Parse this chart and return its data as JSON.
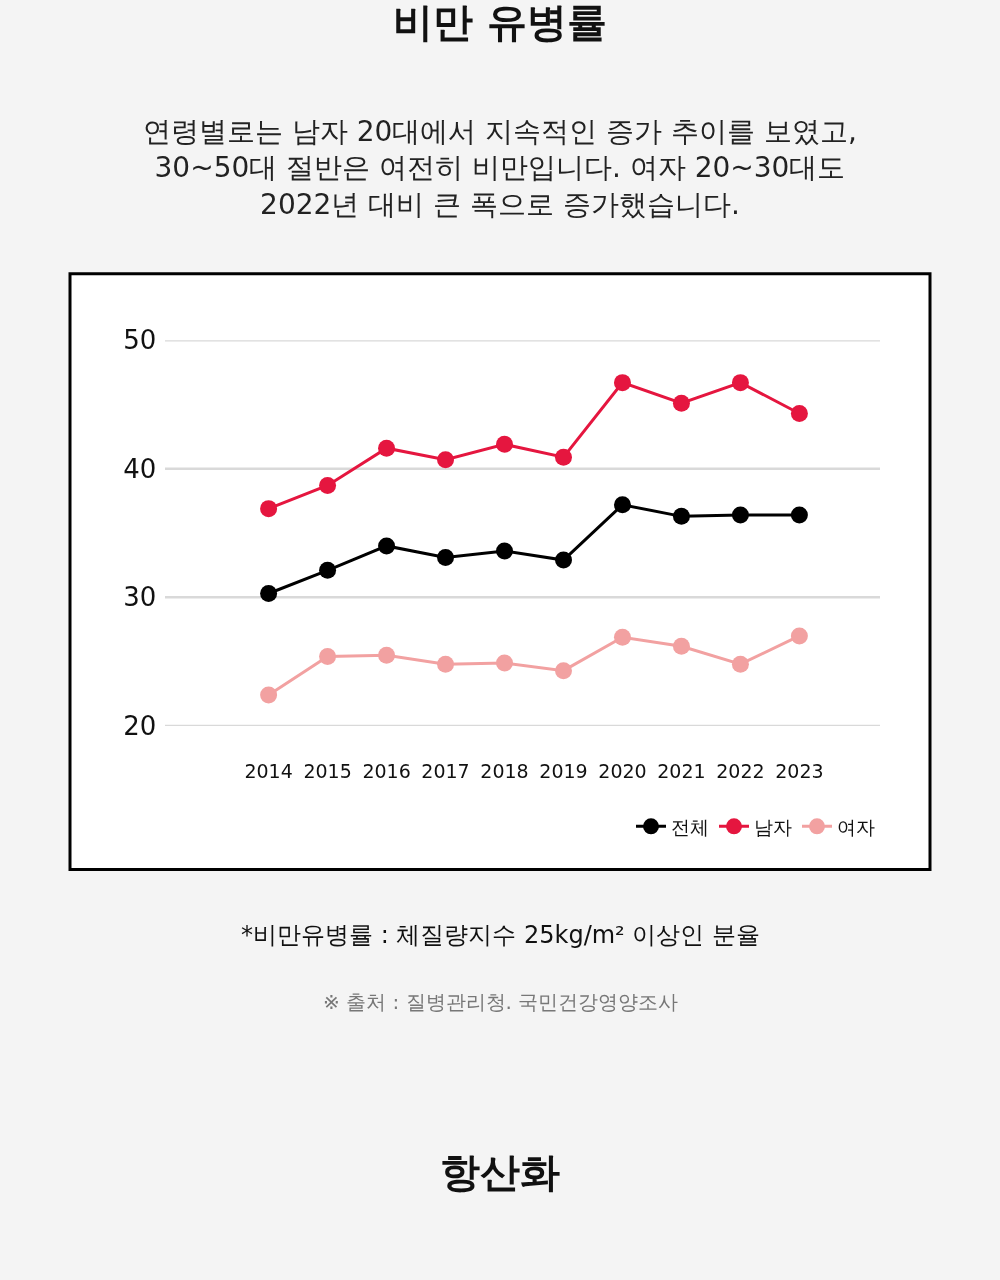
{
  "chart_data": {
    "type": "line",
    "title": "비만 유병률",
    "subtitle": "연령별로는 남자 20대에서 지속적인 증가 추이를 보였고,\n30~50대 절반은 여전히 비만입니다. 여자 20~30대도\n2022년 대비 큰 폭으로 증가했습니다.",
    "categories": [
      "2014",
      "2015",
      "2016",
      "2017",
      "2018",
      "2019",
      "2020",
      "2021",
      "2022",
      "2023"
    ],
    "series": [
      {
        "name": "전체",
        "color": "#000000",
        "values": [
          30.3,
          32.1,
          34.0,
          33.1,
          33.6,
          32.9,
          37.2,
          36.3,
          36.4,
          36.4
        ]
      },
      {
        "name": "남자",
        "color": "#e5163f",
        "values": [
          36.9,
          38.7,
          41.6,
          40.7,
          41.9,
          40.9,
          46.7,
          45.1,
          46.7,
          44.3
        ]
      },
      {
        "name": "여자",
        "color": "#f2a1a1",
        "values": [
          22.4,
          25.4,
          25.5,
          24.8,
          24.9,
          24.3,
          26.9,
          26.2,
          24.8,
          27.0
        ]
      }
    ],
    "ylim": [
      20,
      50
    ],
    "yticks": [
      20,
      30,
      40,
      50
    ],
    "grid": "y",
    "legend": "bottom right",
    "marker": "circle",
    "line_style": "solid",
    "annotations": [
      "*비만유병률 : 체질량지수 25kg/m² 이상인 분율",
      "※ 출처 : 질병관리청. 국민건강영양조사",
      "항산화"
    ]
  }
}
